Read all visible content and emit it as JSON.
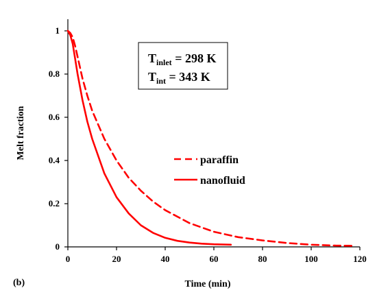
{
  "panel_label": "(b)",
  "annotation": {
    "line1": {
      "symbol": "T",
      "subscript": "inlet",
      "rest": " = 298 K"
    },
    "line2": {
      "symbol": "T",
      "subscript": "int",
      "rest": " = 343 K"
    }
  },
  "chart_data": {
    "type": "line",
    "xlabel": "Time (min)",
    "ylabel": "Melt fraction",
    "xlim": [
      0,
      120
    ],
    "ylim": [
      0,
      1
    ],
    "x_ticks": [
      0,
      20,
      40,
      60,
      80,
      100,
      120
    ],
    "y_ticks": [
      0,
      0.2,
      0.4,
      0.6,
      0.8,
      1
    ],
    "grid": false,
    "legend": "center-right",
    "series": [
      {
        "name": "paraffin",
        "style": "dashed",
        "color": "#ff0000",
        "x": [
          0,
          1,
          2,
          3,
          4,
          6,
          8,
          10,
          15,
          20,
          25,
          30,
          35,
          40,
          50,
          60,
          70,
          80,
          90,
          100,
          110,
          117
        ],
        "y": [
          1.0,
          0.99,
          0.97,
          0.93,
          0.88,
          0.78,
          0.7,
          0.63,
          0.5,
          0.4,
          0.32,
          0.26,
          0.21,
          0.17,
          0.11,
          0.07,
          0.045,
          0.03,
          0.018,
          0.01,
          0.006,
          0.005
        ]
      },
      {
        "name": "nanofluid",
        "style": "solid",
        "color": "#ff0000",
        "x": [
          0,
          1,
          2,
          3,
          4,
          6,
          8,
          10,
          15,
          20,
          25,
          30,
          35,
          40,
          45,
          50,
          55,
          60,
          67
        ],
        "y": [
          1.0,
          0.98,
          0.94,
          0.87,
          0.8,
          0.68,
          0.58,
          0.5,
          0.34,
          0.23,
          0.155,
          0.1,
          0.065,
          0.042,
          0.028,
          0.02,
          0.015,
          0.012,
          0.01
        ]
      }
    ]
  }
}
